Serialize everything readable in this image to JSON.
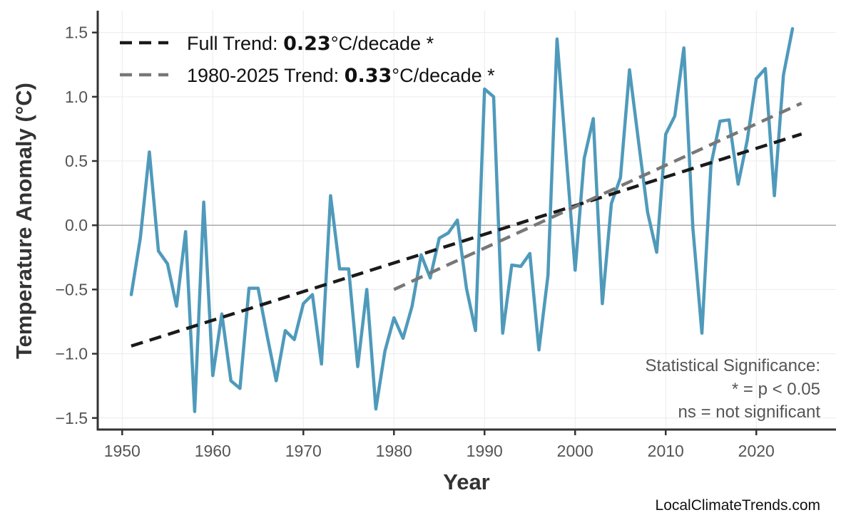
{
  "chart_data": {
    "type": "line",
    "title": "",
    "xlabel": "Year",
    "ylabel": "Temperature Anomaly (°C)",
    "xlim": [
      1947.3,
      2028.8
    ],
    "ylim": [
      -1.59,
      1.67
    ],
    "grid": true,
    "legend_placement": "top-left",
    "x_ticks": [
      1950,
      1960,
      1970,
      1980,
      1990,
      2000,
      2010,
      2020
    ],
    "x_tick_labels": [
      "1950",
      "1960",
      "1970",
      "1980",
      "1990",
      "2000",
      "2010",
      "2020"
    ],
    "y_ticks": [
      -1.5,
      -1.0,
      -0.5,
      0.0,
      0.5,
      1.0,
      1.5
    ],
    "y_tick_labels": [
      "−1.5",
      "−1.0",
      "−0.5",
      "0.0",
      "0.5",
      "1.0",
      "1.5"
    ],
    "zero_line": 0,
    "series": {
      "color": "#4f9abb",
      "x": [
        1951,
        1952,
        1953,
        1954,
        1955,
        1956,
        1957,
        1958,
        1959,
        1960,
        1961,
        1962,
        1963,
        1964,
        1965,
        1966,
        1967,
        1968,
        1969,
        1970,
        1971,
        1972,
        1973,
        1974,
        1975,
        1976,
        1977,
        1978,
        1979,
        1980,
        1981,
        1982,
        1983,
        1984,
        1985,
        1986,
        1987,
        1988,
        1989,
        1990,
        1991,
        1992,
        1993,
        1994,
        1995,
        1996,
        1997,
        1998,
        1999,
        2000,
        2001,
        2002,
        2003,
        2004,
        2005,
        2006,
        2007,
        2008,
        2009,
        2010,
        2011,
        2012,
        2013,
        2014,
        2015,
        2016,
        2017,
        2018,
        2019,
        2020,
        2021,
        2022,
        2023,
        2024
      ],
      "y": [
        -0.54,
        -0.1,
        0.57,
        -0.2,
        -0.3,
        -0.63,
        -0.05,
        -1.45,
        0.18,
        -1.17,
        -0.69,
        -1.21,
        -1.27,
        -0.49,
        -0.49,
        -0.86,
        -1.21,
        -0.82,
        -0.89,
        -0.61,
        -0.54,
        -1.08,
        0.23,
        -0.34,
        -0.34,
        -1.1,
        -0.5,
        -1.43,
        -0.98,
        -0.72,
        -0.88,
        -0.63,
        -0.23,
        -0.41,
        -0.1,
        -0.06,
        0.04,
        -0.49,
        -0.82,
        1.06,
        1.0,
        -0.84,
        -0.31,
        -0.32,
        -0.22,
        -0.97,
        -0.39,
        1.45,
        0.55,
        -0.35,
        0.52,
        0.83,
        -0.61,
        0.17,
        0.37,
        1.21,
        0.65,
        0.1,
        -0.21,
        0.71,
        0.85,
        1.38,
        -0.02,
        -0.84,
        0.47,
        0.81,
        0.82,
        0.32,
        0.66,
        1.14,
        1.22,
        0.23,
        1.17,
        1.53
      ]
    },
    "trends": [
      {
        "name": "Full Trend",
        "rate": "0.23",
        "unit": "°C/decade",
        "sig": "*",
        "color": "#1a1a1a",
        "x": [
          1951,
          2025
        ],
        "y": [
          -0.94,
          0.71
        ]
      },
      {
        "name": "1980-2025 Trend",
        "rate": "0.33",
        "unit": "°C/decade",
        "sig": "*",
        "color": "#777777",
        "x": [
          1980,
          2025
        ],
        "y": [
          -0.5,
          0.95
        ]
      }
    ],
    "annotations": {
      "significance_title": "Statistical Significance:",
      "significance_star": "* = p < 0.05",
      "significance_ns": "ns = not significant"
    },
    "watermark": "LocalClimateTrends.com"
  }
}
